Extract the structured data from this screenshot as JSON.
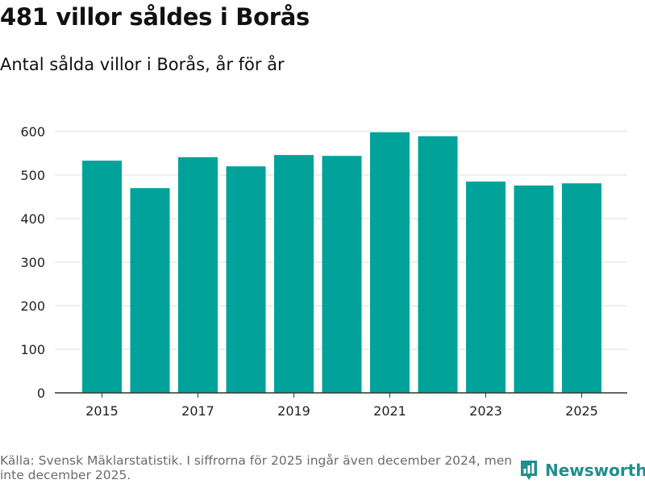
{
  "title": "481 villor såldes i Borås",
  "subtitle": "Antal sålda villor i Borås, år för år",
  "source": "Källa: Svensk Mäklarstatistik. I siffrorna för 2025 ingår även december 2024, men inte december 2025.",
  "logo": {
    "text": "Newsworthy",
    "icon": "newsworthy-bar-chart-icon"
  },
  "colors": {
    "bar": "#00a29a",
    "grid": "#dddddd",
    "axis": "#333333",
    "logo": "#1e8f8a"
  },
  "chart_data": {
    "type": "bar",
    "title": "Antal sålda villor i Borås, år för år",
    "xlabel": "",
    "ylabel": "",
    "categories": [
      "2015",
      "2016",
      "2017",
      "2018",
      "2019",
      "2020",
      "2021",
      "2022",
      "2023",
      "2024",
      "2025"
    ],
    "values": [
      533,
      470,
      541,
      520,
      546,
      544,
      598,
      589,
      485,
      476,
      481
    ],
    "ylim": [
      0,
      600
    ],
    "yticks": [
      0,
      100,
      200,
      300,
      400,
      500,
      600
    ],
    "xtick_labels": [
      "2015",
      "2017",
      "2019",
      "2021",
      "2023",
      "2025"
    ],
    "grid": true
  }
}
